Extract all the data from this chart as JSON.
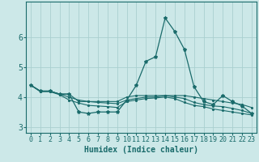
{
  "xlabel": "Humidex (Indice chaleur)",
  "background_color": "#cce8e8",
  "grid_color": "#aacfcf",
  "line_color": "#1a6b6b",
  "x_values": [
    0,
    1,
    2,
    3,
    4,
    5,
    6,
    7,
    8,
    9,
    10,
    11,
    12,
    13,
    14,
    15,
    16,
    17,
    18,
    19,
    20,
    21,
    22,
    23
  ],
  "line1": [
    4.4,
    4.2,
    4.2,
    4.1,
    4.1,
    3.5,
    3.45,
    3.5,
    3.5,
    3.5,
    3.9,
    4.4,
    5.2,
    5.35,
    6.65,
    6.2,
    5.6,
    4.35,
    3.85,
    3.75,
    4.05,
    3.85,
    3.7,
    3.45
  ],
  "line2": [
    4.4,
    4.2,
    4.2,
    4.1,
    4.1,
    3.85,
    3.85,
    3.85,
    3.85,
    3.85,
    4.0,
    4.05,
    4.05,
    4.05,
    4.05,
    4.05,
    4.05,
    4.0,
    3.95,
    3.9,
    3.85,
    3.8,
    3.75,
    3.65
  ],
  "line3": [
    4.4,
    4.2,
    4.2,
    4.1,
    4.0,
    3.9,
    3.85,
    3.82,
    3.8,
    3.78,
    3.9,
    3.95,
    4.0,
    4.0,
    4.05,
    4.0,
    3.95,
    3.82,
    3.75,
    3.7,
    3.68,
    3.62,
    3.55,
    3.45
  ],
  "line4": [
    4.4,
    4.18,
    4.18,
    4.08,
    3.9,
    3.8,
    3.72,
    3.7,
    3.68,
    3.65,
    3.85,
    3.9,
    3.95,
    3.97,
    4.0,
    3.95,
    3.82,
    3.72,
    3.68,
    3.6,
    3.55,
    3.5,
    3.45,
    3.4
  ],
  "ylim": [
    2.8,
    7.2
  ],
  "yticks": [
    3,
    4,
    5,
    6
  ],
  "xticks": [
    0,
    1,
    2,
    3,
    4,
    5,
    6,
    7,
    8,
    9,
    10,
    11,
    12,
    13,
    14,
    15,
    16,
    17,
    18,
    19,
    20,
    21,
    22,
    23
  ],
  "xlabel_fontsize": 7,
  "tick_fontsize": 6
}
